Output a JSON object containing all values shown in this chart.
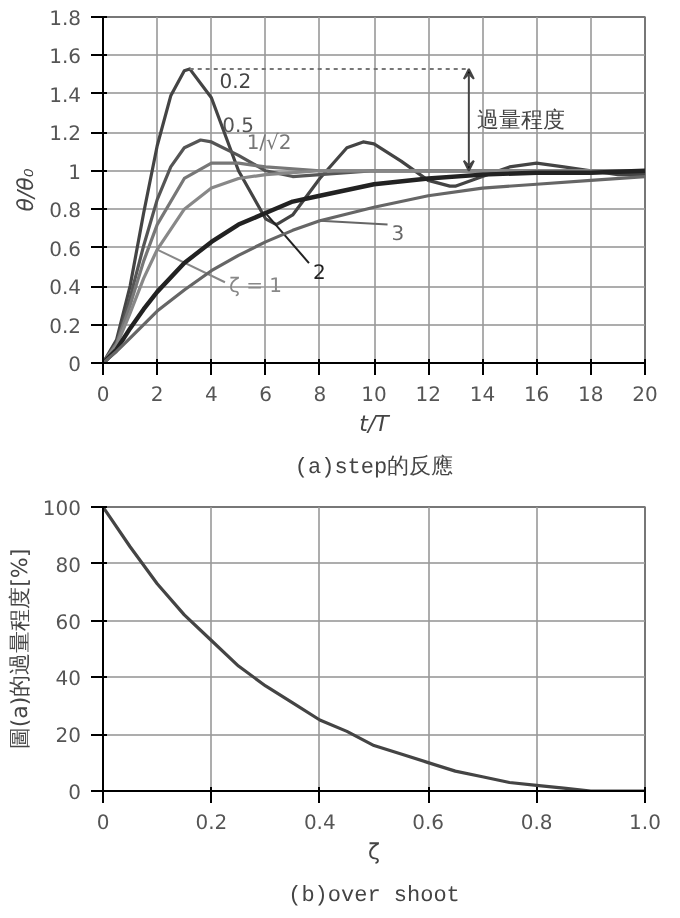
{
  "chart_data": [
    {
      "type": "line",
      "title": "(a)step的反應",
      "xlabel": "t/T",
      "ylabel": "θ/θ₀",
      "xlim": [
        0,
        20
      ],
      "ylim": [
        0,
        1.8
      ],
      "xticks": [
        0,
        2,
        4,
        6,
        8,
        10,
        12,
        14,
        16,
        18,
        20
      ],
      "yticks": [
        0,
        0.2,
        0.4,
        0.6,
        0.8,
        1,
        1.2,
        1.4,
        1.6,
        1.8
      ],
      "grid": true,
      "annotations": [
        "過量程度"
      ],
      "series": [
        {
          "name": "0.2",
          "color": "#444444",
          "x": [
            0,
            0.5,
            1,
            1.5,
            2,
            2.5,
            3,
            3.2,
            4,
            5,
            6,
            6.4,
            7,
            8,
            9,
            9.6,
            10,
            11,
            12,
            12.8,
            13,
            14,
            15,
            16,
            17,
            18,
            19,
            20
          ],
          "values": [
            0,
            0.12,
            0.4,
            0.78,
            1.13,
            1.39,
            1.52,
            1.53,
            1.38,
            1.0,
            0.75,
            0.72,
            0.77,
            0.96,
            1.12,
            1.15,
            1.14,
            1.05,
            0.95,
            0.92,
            0.92,
            0.97,
            1.02,
            1.04,
            1.02,
            1.0,
            0.98,
            0.98
          ]
        },
        {
          "name": "0.5",
          "color": "#555555",
          "x": [
            0,
            0.5,
            1,
            1.5,
            2,
            2.5,
            3,
            3.6,
            4,
            5,
            6,
            7,
            8,
            10,
            14,
            20
          ],
          "values": [
            0,
            0.1,
            0.34,
            0.61,
            0.85,
            1.02,
            1.12,
            1.16,
            1.15,
            1.08,
            1.0,
            0.97,
            0.98,
            1.0,
            1.0,
            1.0
          ]
        },
        {
          "name": "1/√2",
          "color": "#777777",
          "x": [
            0,
            0.5,
            1,
            1.5,
            2,
            3,
            4,
            4.4,
            5,
            6,
            8,
            10,
            20
          ],
          "values": [
            0,
            0.1,
            0.3,
            0.53,
            0.72,
            0.96,
            1.04,
            1.04,
            1.04,
            1.02,
            1.0,
            1.0,
            1.0
          ]
        },
        {
          "name": "ζ = 1",
          "color": "#888888",
          "x": [
            0,
            0.5,
            1,
            1.5,
            2,
            3,
            4,
            5,
            6,
            8,
            10,
            20
          ],
          "values": [
            0,
            0.09,
            0.26,
            0.44,
            0.59,
            0.8,
            0.91,
            0.96,
            0.98,
            1.0,
            1.0,
            1.0
          ]
        },
        {
          "name": "2",
          "color": "#222222",
          "x": [
            0,
            0.5,
            1,
            1.5,
            2,
            3,
            4,
            5,
            6,
            7,
            8,
            10,
            12,
            14,
            16,
            18,
            20
          ],
          "values": [
            0,
            0.07,
            0.18,
            0.28,
            0.37,
            0.52,
            0.63,
            0.72,
            0.78,
            0.84,
            0.87,
            0.93,
            0.96,
            0.98,
            0.99,
            0.99,
            1.0
          ]
        },
        {
          "name": "3",
          "color": "#666666",
          "x": [
            0,
            0.5,
            1,
            1.5,
            2,
            3,
            4,
            5,
            6,
            7,
            8,
            10,
            12,
            14,
            16,
            18,
            20
          ],
          "values": [
            0,
            0.06,
            0.13,
            0.2,
            0.27,
            0.38,
            0.48,
            0.56,
            0.63,
            0.69,
            0.74,
            0.81,
            0.87,
            0.91,
            0.93,
            0.95,
            0.97
          ]
        }
      ]
    },
    {
      "type": "line",
      "title": "(b)over shoot",
      "xlabel": "ζ",
      "ylabel": "圖(a)的過量程度[%]",
      "xlim": [
        0,
        1
      ],
      "ylim": [
        0,
        100
      ],
      "xticks": [
        0,
        0.2,
        0.4,
        0.6,
        0.8,
        {
          "value": 1,
          "label": "1.0"
        }
      ],
      "yticks": [
        0,
        20,
        40,
        60,
        80,
        100
      ],
      "grid": true,
      "series": [
        {
          "color": "#444444",
          "x": [
            0,
            0.05,
            0.1,
            0.15,
            0.2,
            0.25,
            0.3,
            0.35,
            0.4,
            0.45,
            0.5,
            0.55,
            0.6,
            0.65,
            0.7,
            0.75,
            0.8,
            0.85,
            0.9,
            0.95,
            1
          ],
          "values": [
            100,
            86,
            73,
            62,
            53,
            44,
            37,
            31,
            25,
            21,
            16,
            13,
            10,
            7,
            5,
            3,
            2,
            1,
            0,
            0,
            0
          ]
        }
      ]
    }
  ]
}
